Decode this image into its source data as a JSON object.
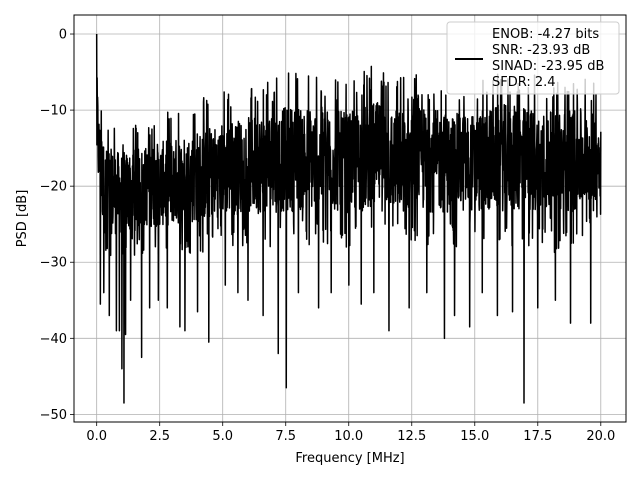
{
  "chart_data": {
    "type": "line",
    "title": "",
    "xlabel": "Frequency [MHz]",
    "ylabel": "PSD [dB]",
    "xlim": [
      -0.9,
      21.0
    ],
    "ylim": [
      -51.0,
      2.5
    ],
    "xticks": [
      0.0,
      2.5,
      5.0,
      7.5,
      10.0,
      12.5,
      15.0,
      17.5,
      20.0
    ],
    "xtick_labels": [
      "0.0",
      "2.5",
      "5.0",
      "7.5",
      "10.0",
      "12.5",
      "15.0",
      "17.5",
      "20.0"
    ],
    "yticks": [
      0,
      -10,
      -20,
      -30,
      -40,
      -50
    ],
    "ytick_labels": [
      "0",
      "−10",
      "−20",
      "−30",
      "−40",
      "−50"
    ],
    "grid": true,
    "legend_position": "top-right",
    "series": [
      {
        "name": "ENOB: -4.27 bits\nSNR: -23.93 dB\nSINAD: -23.95 dB\nSFDR: 2.4",
        "color": "#000000",
        "description_of_shape": "noise-like PSD spanning 0–20 MHz, peak 0 dB at DC, typical band -8 to -30 dB, deep notches to about -48 dB",
        "x_range": [
          0.0,
          20.0
        ],
        "peak": {
          "x": 0.0,
          "y": 0.0
        },
        "envelope_upper": [
          [
            0.0,
            0.0
          ],
          [
            0.1,
            -7.0
          ],
          [
            0.3,
            -11.0
          ],
          [
            1.0,
            -12.0
          ],
          [
            2.0,
            -11.0
          ],
          [
            3.0,
            -10.0
          ],
          [
            4.0,
            -8.5
          ],
          [
            5.0,
            -7.5
          ],
          [
            6.0,
            -6.5
          ],
          [
            7.0,
            -5.5
          ],
          [
            8.0,
            -4.5
          ],
          [
            9.0,
            -5.0
          ],
          [
            10.0,
            -6.0
          ],
          [
            11.0,
            -4.0
          ],
          [
            12.0,
            -5.5
          ],
          [
            13.0,
            -5.0
          ],
          [
            14.0,
            -6.0
          ],
          [
            15.0,
            -6.0
          ],
          [
            16.0,
            -4.5
          ],
          [
            17.0,
            -5.0
          ],
          [
            18.0,
            -5.5
          ],
          [
            19.0,
            -5.0
          ],
          [
            20.0,
            -7.0
          ]
        ],
        "envelope_lower": [
          [
            0.0,
            -23.0
          ],
          [
            0.3,
            -30.0
          ],
          [
            1.0,
            -30.0
          ],
          [
            2.0,
            -29.0
          ],
          [
            3.0,
            -29.0
          ],
          [
            4.0,
            -29.0
          ],
          [
            5.0,
            -28.0
          ],
          [
            6.0,
            -28.0
          ],
          [
            7.0,
            -28.0
          ],
          [
            8.0,
            -28.0
          ],
          [
            9.0,
            -28.0
          ],
          [
            10.0,
            -28.0
          ],
          [
            11.0,
            -28.0
          ],
          [
            12.0,
            -28.0
          ],
          [
            13.0,
            -28.0
          ],
          [
            14.0,
            -28.0
          ],
          [
            15.0,
            -28.0
          ],
          [
            16.0,
            -28.0
          ],
          [
            17.0,
            -28.0
          ],
          [
            18.0,
            -29.0
          ],
          [
            19.0,
            -28.0
          ],
          [
            20.0,
            -25.0
          ]
        ],
        "notches": [
          [
            0.15,
            -35.5
          ],
          [
            0.28,
            -34.0
          ],
          [
            0.5,
            -37.0
          ],
          [
            0.78,
            -39.0
          ],
          [
            0.9,
            -39.0
          ],
          [
            1.0,
            -44.0
          ],
          [
            1.08,
            -48.5
          ],
          [
            1.15,
            -39.5
          ],
          [
            1.35,
            -35.0
          ],
          [
            1.78,
            -42.5
          ],
          [
            2.1,
            -36.0
          ],
          [
            2.45,
            -35.0
          ],
          [
            2.8,
            -36.0
          ],
          [
            3.3,
            -38.5
          ],
          [
            3.5,
            -39.0
          ],
          [
            4.0,
            -36.5
          ],
          [
            4.45,
            -40.5
          ],
          [
            5.1,
            -33.0
          ],
          [
            5.6,
            -34.0
          ],
          [
            6.0,
            -35.0
          ],
          [
            6.6,
            -37.0
          ],
          [
            7.2,
            -42.0
          ],
          [
            7.52,
            -46.5
          ],
          [
            8.0,
            -34.0
          ],
          [
            8.8,
            -36.0
          ],
          [
            9.3,
            -34.0
          ],
          [
            10.0,
            -33.0
          ],
          [
            10.5,
            -35.5
          ],
          [
            11.0,
            -34.0
          ],
          [
            11.6,
            -39.0
          ],
          [
            12.4,
            -36.0
          ],
          [
            13.1,
            -34.0
          ],
          [
            13.8,
            -40.0
          ],
          [
            14.2,
            -37.0
          ],
          [
            14.8,
            -38.5
          ],
          [
            15.3,
            -34.0
          ],
          [
            15.9,
            -37.0
          ],
          [
            16.5,
            -36.5
          ],
          [
            16.95,
            -48.5
          ],
          [
            17.5,
            -36.0
          ],
          [
            18.2,
            -35.0
          ],
          [
            18.8,
            -38.0
          ],
          [
            19.6,
            -38.0
          ]
        ]
      }
    ]
  }
}
